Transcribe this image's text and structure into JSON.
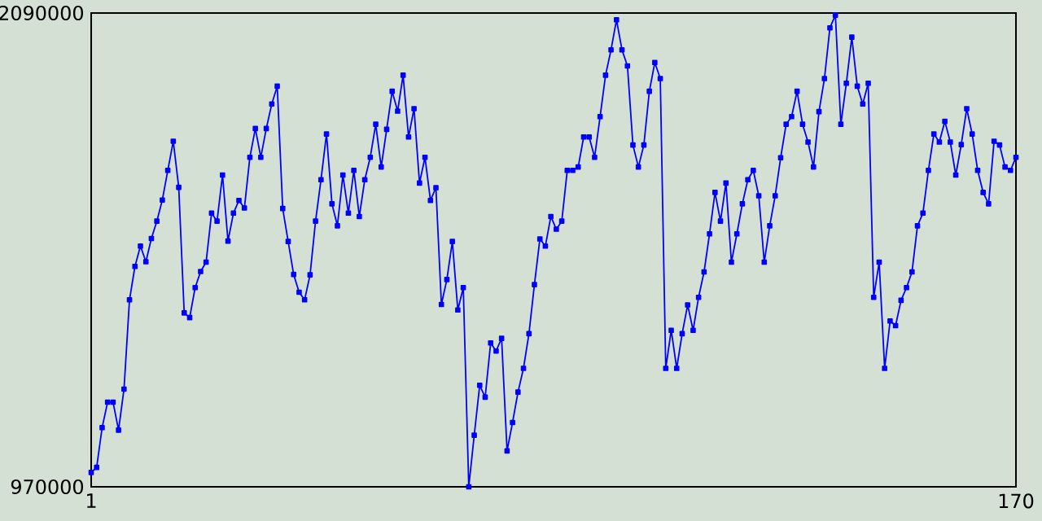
{
  "chart_data": {
    "type": "line",
    "x": [
      1,
      2,
      3,
      4,
      5,
      6,
      7,
      8,
      9,
      10,
      11,
      12,
      13,
      14,
      15,
      16,
      17,
      18,
      19,
      20,
      21,
      22,
      23,
      24,
      25,
      26,
      27,
      28,
      29,
      30,
      31,
      32,
      33,
      34,
      35,
      36,
      37,
      38,
      39,
      40,
      41,
      42,
      43,
      44,
      45,
      46,
      47,
      48,
      49,
      50,
      51,
      52,
      53,
      54,
      55,
      56,
      57,
      58,
      59,
      60,
      61,
      62,
      63,
      64,
      65,
      66,
      67,
      68,
      69,
      70,
      71,
      72,
      73,
      74,
      75,
      76,
      77,
      78,
      79,
      80,
      81,
      82,
      83,
      84,
      85,
      86,
      87,
      88,
      89,
      90,
      91,
      92,
      93,
      94,
      95,
      96,
      97,
      98,
      99,
      100,
      101,
      102,
      103,
      104,
      105,
      106,
      107,
      108,
      109,
      110,
      111,
      112,
      113,
      114,
      115,
      116,
      117,
      118,
      119,
      120,
      121,
      122,
      123,
      124,
      125,
      126,
      127,
      128,
      129,
      130,
      131,
      132,
      133,
      134,
      135,
      136,
      137,
      138,
      139,
      140,
      141,
      142,
      143,
      144,
      145,
      146,
      147,
      148,
      149,
      150,
      151,
      152,
      153,
      154,
      155,
      156,
      157,
      158,
      159,
      160,
      161,
      162,
      163,
      164,
      165,
      166,
      167,
      168,
      169,
      170
    ],
    "series": [
      {
        "color": "#0000ff",
        "values": [
          1004000,
          1016000,
          1110000,
          1170000,
          1170000,
          1104000,
          1201000,
          1412000,
          1491000,
          1539000,
          1502000,
          1557000,
          1598000,
          1648000,
          1718000,
          1787000,
          1678000,
          1381000,
          1370000,
          1441000,
          1479000,
          1501000,
          1617000,
          1598000,
          1707000,
          1551000,
          1617000,
          1647000,
          1629000,
          1749000,
          1817000,
          1749000,
          1817000,
          1875000,
          1917000,
          1628000,
          1550000,
          1472000,
          1430000,
          1412000,
          1471000,
          1598000,
          1696000,
          1804000,
          1639000,
          1587000,
          1707000,
          1617000,
          1718000,
          1609000,
          1696000,
          1749000,
          1827000,
          1726000,
          1815000,
          1905000,
          1858000,
          1943000,
          1797000,
          1864000,
          1688000,
          1749000,
          1647000,
          1677000,
          1401000,
          1460000,
          1550000,
          1388000,
          1441000,
          970000,
          1092000,
          1210000,
          1182000,
          1310000,
          1291000,
          1321000,
          1055000,
          1122000,
          1194000,
          1250000,
          1332000,
          1448000,
          1556000,
          1539000,
          1609000,
          1579000,
          1598000,
          1718000,
          1718000,
          1726000,
          1797000,
          1797000,
          1749000,
          1845000,
          1943000,
          2003000,
          2074000,
          2003000,
          1965000,
          1778000,
          1726000,
          1778000,
          1905000,
          1973000,
          1935000,
          1250000,
          1340000,
          1250000,
          1332000,
          1400000,
          1340000,
          1418000,
          1478000,
          1568000,
          1666000,
          1598000,
          1688000,
          1501000,
          1568000,
          1639000,
          1696000,
          1718000,
          1658000,
          1501000,
          1587000,
          1658000,
          1748000,
          1827000,
          1845000,
          1905000,
          1827000,
          1785000,
          1726000,
          1857000,
          1935000,
          2055000,
          2085000,
          1827000,
          1924000,
          2033000,
          1917000,
          1875000,
          1924000,
          1418000,
          1501000,
          1250000,
          1362000,
          1351000,
          1411000,
          1441000,
          1478000,
          1587000,
          1617000,
          1718000,
          1804000,
          1785000,
          1834000,
          1785000,
          1707000,
          1779000,
          1864000,
          1804000,
          1718000,
          1666000,
          1639000,
          1787000,
          1778000,
          1726000,
          1718000,
          1749000
        ]
      }
    ],
    "xlim": [
      1,
      170
    ],
    "ylim": [
      970000,
      2090000
    ],
    "xticks": [
      1,
      170
    ],
    "yticks": [
      970000,
      2090000
    ],
    "marker": "square",
    "line_style": "solid"
  }
}
